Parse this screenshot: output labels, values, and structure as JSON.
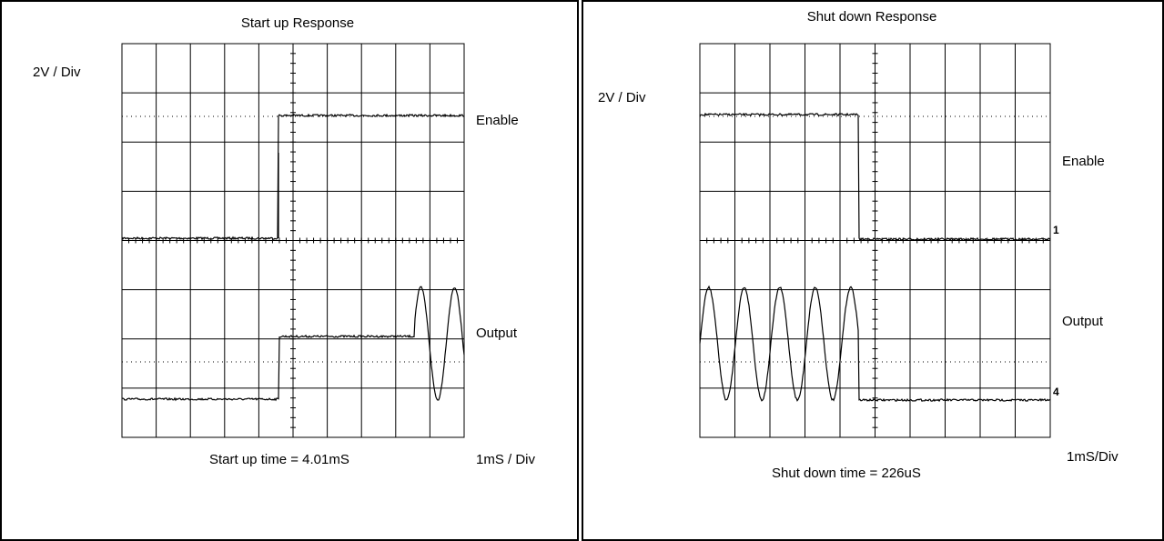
{
  "panels": [
    {
      "title": "Start up Response",
      "scale": "2V / Div",
      "enable": "Enable",
      "output": "Output",
      "measurement": "Start up time = 4.01mS",
      "timebase": "1mS / Div"
    },
    {
      "title": "Shut down Response",
      "scale": "2V / Div",
      "enable": "Enable",
      "output": "Output",
      "measurement": "Shut down time = 226uS",
      "timebase": "1mS/Div",
      "marker_enable": "1",
      "marker_output": "4"
    }
  ]
}
